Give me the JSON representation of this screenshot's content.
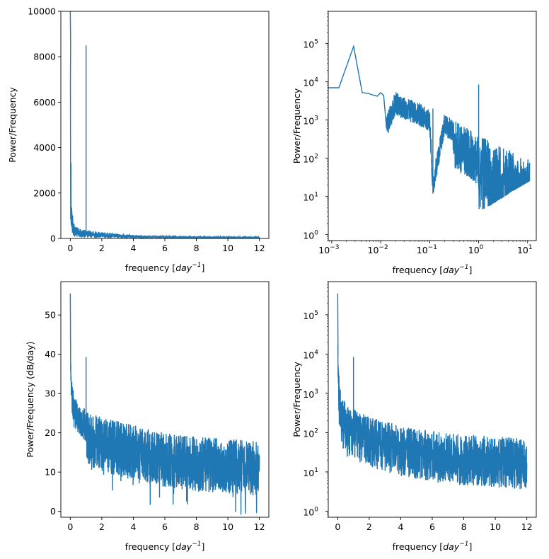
{
  "chart_data": [
    {
      "type": "line",
      "xlabel": "frequency [day^-1]",
      "ylabel": "Power/Frequency",
      "xscale": "linear",
      "yscale": "linear",
      "xlim": [
        -0.6,
        12.6
      ],
      "ylim": [
        0,
        10000
      ],
      "xticks": [
        0,
        2,
        4,
        6,
        8,
        10,
        12
      ],
      "yticks": [
        0,
        2000,
        4000,
        6000,
        8000,
        10000
      ],
      "xtick_labels": [
        "0",
        "2",
        "4",
        "6",
        "8",
        "10",
        "12"
      ],
      "ytick_labels": [
        "0",
        "2000",
        "4000",
        "6000",
        "8000",
        "10000"
      ],
      "series": [
        {
          "color": "#1f77b4",
          "x": [
            0,
            0.02,
            0.05,
            0.1,
            0.2,
            0.3,
            0.5,
            0.8,
            0.99,
            1.0,
            1.01,
            1.5,
            2,
            3,
            4,
            6,
            8,
            10,
            12
          ],
          "y": [
            10000,
            8600,
            3000,
            1400,
            800,
            600,
            450,
            380,
            380,
            8500,
            380,
            320,
            280,
            200,
            150,
            110,
            90,
            80,
            70
          ]
        }
      ]
    },
    {
      "type": "line",
      "xlabel": "frequency [day^-1]",
      "ylabel": "Power/Frequency",
      "xscale": "log",
      "yscale": "log",
      "xlim": [
        0.00085,
        15
      ],
      "ylim": [
        0.7,
        700000
      ],
      "xticks": [
        0.001,
        0.01,
        0.1,
        1,
        10
      ],
      "yticks": [
        1,
        10,
        100,
        1000,
        10000,
        100000
      ],
      "xtick_labels": [
        "10",
        "10",
        "10",
        "10",
        "10"
      ],
      "xtick_exponents": [
        "−3",
        "−2",
        "−1",
        "0",
        "1"
      ],
      "ytick_labels": [
        "10",
        "10",
        "10",
        "10",
        "10",
        "10"
      ],
      "ytick_exponents": [
        "0",
        "1",
        "2",
        "3",
        "4",
        "5"
      ],
      "series": [
        {
          "color": "#1f77b4",
          "x": [
            0.00085,
            0.0014,
            0.0028,
            0.0042,
            0.0055,
            0.007,
            0.0085,
            0.01,
            0.0115,
            0.013,
            0.02,
            0.03,
            0.05,
            0.1,
            0.116,
            0.2,
            0.5,
            0.99,
            1.0,
            1.01,
            2,
            5,
            11
          ],
          "y": [
            7000,
            7000,
            85000,
            5200,
            5000,
            4500,
            4200,
            5200,
            4400,
            1300,
            5500,
            4000,
            3200,
            2000,
            40,
            1500,
            700,
            400,
            8500,
            400,
            250,
            150,
            90
          ]
        }
      ]
    },
    {
      "type": "line",
      "xlabel": "frequency [day^-1]",
      "ylabel": "Power/Frequency (dB/day)",
      "xscale": "linear",
      "yscale": "linear",
      "xlim": [
        -0.6,
        12.6
      ],
      "ylim": [
        -1.5,
        58.5
      ],
      "xticks": [
        0,
        2,
        4,
        6,
        8,
        10,
        12
      ],
      "yticks": [
        0,
        10,
        20,
        30,
        40,
        50
      ],
      "xtick_labels": [
        "0",
        "2",
        "4",
        "6",
        "8",
        "10",
        "12"
      ],
      "ytick_labels": [
        "0",
        "10",
        "20",
        "30",
        "40",
        "50"
      ],
      "series": [
        {
          "color": "#1f77b4",
          "x": [
            0,
            0.02,
            0.1,
            0.3,
            0.6,
            0.99,
            1.0,
            1.01,
            2,
            4,
            6,
            8,
            10,
            12
          ],
          "y": [
            55.5,
            40,
            33,
            29,
            27,
            26,
            39.3,
            26,
            24,
            22,
            20,
            19,
            18.5,
            18
          ]
        }
      ]
    },
    {
      "type": "line",
      "xlabel": "frequency [day^-1]",
      "ylabel": "Power/Frequency",
      "xscale": "linear",
      "yscale": "log",
      "xlim": [
        -0.6,
        12.6
      ],
      "ylim": [
        0.7,
        700000
      ],
      "xticks": [
        0,
        2,
        4,
        6,
        8,
        10,
        12
      ],
      "yticks": [
        1,
        10,
        100,
        1000,
        10000,
        100000
      ],
      "xtick_labels": [
        "0",
        "2",
        "4",
        "6",
        "8",
        "10",
        "12"
      ],
      "ytick_labels": [
        "10",
        "10",
        "10",
        "10",
        "10",
        "10"
      ],
      "ytick_exponents": [
        "0",
        "1",
        "2",
        "3",
        "4",
        "5"
      ],
      "series": [
        {
          "color": "#1f77b4",
          "x": [
            0,
            0.02,
            0.1,
            0.3,
            0.6,
            0.99,
            1.0,
            1.01,
            2,
            4,
            6,
            8,
            10,
            12
          ],
          "y": [
            350000,
            9000,
            2000,
            800,
            500,
            400,
            8500,
            400,
            250,
            150,
            110,
            90,
            80,
            70
          ]
        }
      ]
    }
  ]
}
